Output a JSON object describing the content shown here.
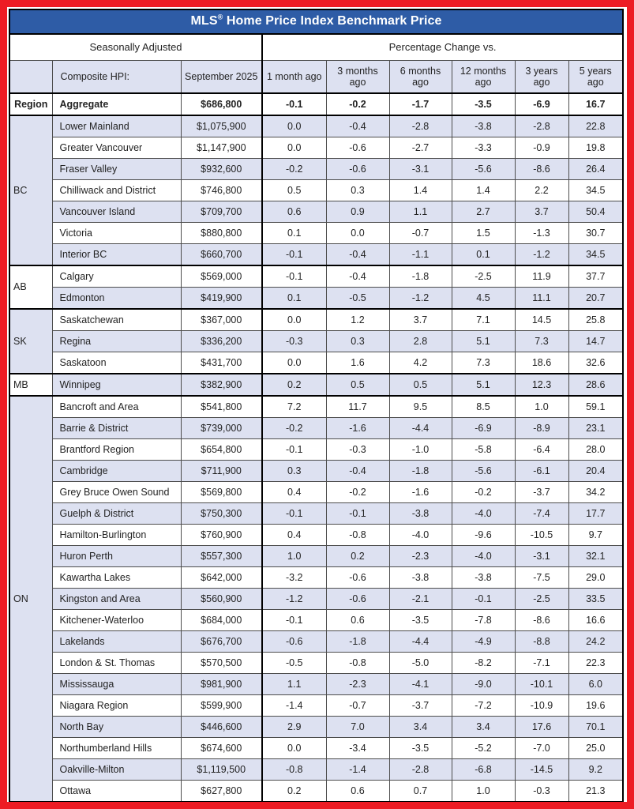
{
  "title": {
    "brand": "MLS",
    "reg_mark": "®",
    "rest": " Home Price Index Benchmark Price"
  },
  "header": {
    "seasonally_adjusted": "Seasonally Adjusted",
    "percentage_change": "Percentage Change vs.",
    "composite_label": "Composite HPI:",
    "date_label": "September 2025",
    "region_col_label": "Region",
    "change_cols": [
      "1 month ago",
      "3 months ago",
      "6 months ago",
      "12 months ago",
      "3 years ago",
      "5 years ago"
    ]
  },
  "aggregate": {
    "region": "Region",
    "area": "Aggregate",
    "price": "$686,800",
    "changes": [
      "-0.1",
      "-0.2",
      "-1.7",
      "-3.5",
      "-6.9",
      "16.7"
    ]
  },
  "groups": [
    {
      "region": "BC",
      "rows": [
        {
          "area": "Lower Mainland",
          "price": "$1,075,900",
          "changes": [
            "0.0",
            "-0.4",
            "-2.8",
            "-3.8",
            "-2.8",
            "22.8"
          ]
        },
        {
          "area": "Greater Vancouver",
          "price": "$1,147,900",
          "changes": [
            "0.0",
            "-0.6",
            "-2.7",
            "-3.3",
            "-0.9",
            "19.8"
          ]
        },
        {
          "area": "Fraser Valley",
          "price": "$932,600",
          "changes": [
            "-0.2",
            "-0.6",
            "-3.1",
            "-5.6",
            "-8.6",
            "26.4"
          ]
        },
        {
          "area": "Chilliwack and District",
          "price": "$746,800",
          "changes": [
            "0.5",
            "0.3",
            "1.4",
            "1.4",
            "2.2",
            "34.5"
          ]
        },
        {
          "area": "Vancouver Island",
          "price": "$709,700",
          "changes": [
            "0.6",
            "0.9",
            "1.1",
            "2.7",
            "3.7",
            "50.4"
          ]
        },
        {
          "area": "Victoria",
          "price": "$880,800",
          "changes": [
            "0.1",
            "0.0",
            "-0.7",
            "1.5",
            "-1.3",
            "30.7"
          ]
        },
        {
          "area": "Interior BC",
          "price": "$660,700",
          "changes": [
            "-0.1",
            "-0.4",
            "-1.1",
            "0.1",
            "-1.2",
            "34.5"
          ]
        }
      ]
    },
    {
      "region": "AB",
      "rows": [
        {
          "area": "Calgary",
          "price": "$569,000",
          "changes": [
            "-0.1",
            "-0.4",
            "-1.8",
            "-2.5",
            "11.9",
            "37.7"
          ]
        },
        {
          "area": "Edmonton",
          "price": "$419,900",
          "changes": [
            "0.1",
            "-0.5",
            "-1.2",
            "4.5",
            "11.1",
            "20.7"
          ]
        }
      ]
    },
    {
      "region": "SK",
      "rows": [
        {
          "area": "Saskatchewan",
          "price": "$367,000",
          "changes": [
            "0.0",
            "1.2",
            "3.7",
            "7.1",
            "14.5",
            "25.8"
          ]
        },
        {
          "area": "Regina",
          "price": "$336,200",
          "changes": [
            "-0.3",
            "0.3",
            "2.8",
            "5.1",
            "7.3",
            "14.7"
          ]
        },
        {
          "area": "Saskatoon",
          "price": "$431,700",
          "changes": [
            "0.0",
            "1.6",
            "4.2",
            "7.3",
            "18.6",
            "32.6"
          ]
        }
      ]
    },
    {
      "region": "MB",
      "rows": [
        {
          "area": "Winnipeg",
          "price": "$382,900",
          "changes": [
            "0.2",
            "0.5",
            "0.5",
            "5.1",
            "12.3",
            "28.6"
          ]
        }
      ]
    },
    {
      "region": "ON",
      "rows": [
        {
          "area": "Bancroft and Area",
          "price": "$541,800",
          "changes": [
            "7.2",
            "11.7",
            "9.5",
            "8.5",
            "1.0",
            "59.1"
          ]
        },
        {
          "area": "Barrie & District",
          "price": "$739,000",
          "changes": [
            "-0.2",
            "-1.6",
            "-4.4",
            "-6.9",
            "-8.9",
            "23.1"
          ]
        },
        {
          "area": "Brantford Region",
          "price": "$654,800",
          "changes": [
            "-0.1",
            "-0.3",
            "-1.0",
            "-5.8",
            "-6.4",
            "28.0"
          ]
        },
        {
          "area": "Cambridge",
          "price": "$711,900",
          "changes": [
            "0.3",
            "-0.4",
            "-1.8",
            "-5.6",
            "-6.1",
            "20.4"
          ]
        },
        {
          "area": "Grey Bruce Owen Sound",
          "price": "$569,800",
          "changes": [
            "0.4",
            "-0.2",
            "-1.6",
            "-0.2",
            "-3.7",
            "34.2"
          ]
        },
        {
          "area": "Guelph & District",
          "price": "$750,300",
          "changes": [
            "-0.1",
            "-0.1",
            "-3.8",
            "-4.0",
            "-7.4",
            "17.7"
          ]
        },
        {
          "area": "Hamilton-Burlington",
          "price": "$760,900",
          "changes": [
            "0.4",
            "-0.8",
            "-4.0",
            "-9.6",
            "-10.5",
            "9.7"
          ]
        },
        {
          "area": "Huron Perth",
          "price": "$557,300",
          "changes": [
            "1.0",
            "0.2",
            "-2.3",
            "-4.0",
            "-3.1",
            "32.1"
          ]
        },
        {
          "area": "Kawartha Lakes",
          "price": "$642,000",
          "changes": [
            "-3.2",
            "-0.6",
            "-3.8",
            "-3.8",
            "-7.5",
            "29.0"
          ]
        },
        {
          "area": "Kingston and Area",
          "price": "$560,900",
          "changes": [
            "-1.2",
            "-0.6",
            "-2.1",
            "-0.1",
            "-2.5",
            "33.5"
          ]
        },
        {
          "area": "Kitchener-Waterloo",
          "price": "$684,000",
          "changes": [
            "-0.1",
            "0.6",
            "-3.5",
            "-7.8",
            "-8.6",
            "16.6"
          ]
        },
        {
          "area": "Lakelands",
          "price": "$676,700",
          "changes": [
            "-0.6",
            "-1.8",
            "-4.4",
            "-4.9",
            "-8.8",
            "24.2"
          ]
        },
        {
          "area": "London & St. Thomas",
          "price": "$570,500",
          "changes": [
            "-0.5",
            "-0.8",
            "-5.0",
            "-8.2",
            "-7.1",
            "22.3"
          ]
        },
        {
          "area": "Mississauga",
          "price": "$981,900",
          "changes": [
            "1.1",
            "-2.3",
            "-4.1",
            "-9.0",
            "-10.1",
            "6.0"
          ]
        },
        {
          "area": "Niagara Region",
          "price": "$599,900",
          "changes": [
            "-1.4",
            "-0.7",
            "-3.7",
            "-7.2",
            "-10.9",
            "19.6"
          ]
        },
        {
          "area": "North Bay",
          "price": "$446,600",
          "changes": [
            "2.9",
            "7.0",
            "3.4",
            "3.4",
            "17.6",
            "70.1"
          ]
        },
        {
          "area": "Northumberland Hills",
          "price": "$674,600",
          "changes": [
            "0.0",
            "-3.4",
            "-3.5",
            "-5.2",
            "-7.0",
            "25.0"
          ]
        },
        {
          "area": "Oakville-Milton",
          "price": "$1,119,500",
          "changes": [
            "-0.8",
            "-1.4",
            "-2.8",
            "-6.8",
            "-14.5",
            "9.2"
          ]
        },
        {
          "area": "Ottawa",
          "price": "$627,800",
          "changes": [
            "0.2",
            "0.6",
            "0.7",
            "1.0",
            "-0.3",
            "21.3"
          ]
        }
      ]
    }
  ],
  "colors": {
    "frame_red": "#ed1c24",
    "title_blue": "#2e5ca6",
    "stripe_lavender": "#dde1f1",
    "grid_line": "#4d4d4d"
  }
}
